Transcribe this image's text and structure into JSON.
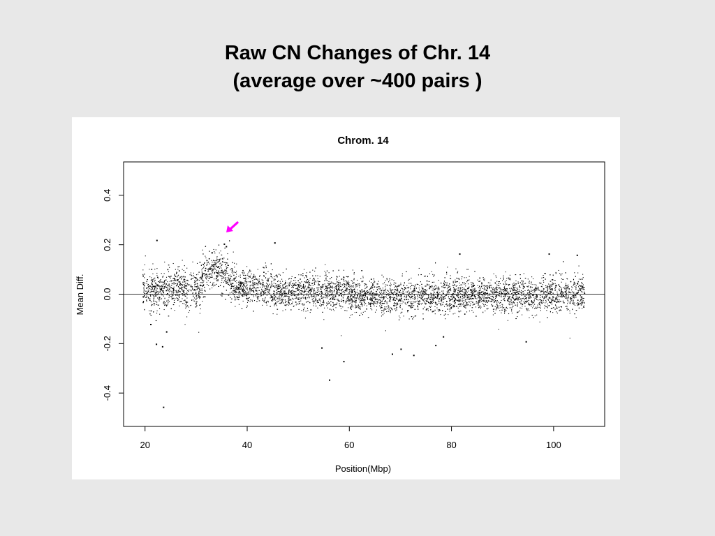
{
  "slide": {
    "title_line1": "Raw CN Changes of Chr. 14",
    "title_line2": "(average over ~400 pairs )"
  },
  "colors": {
    "background": "#e8e8e8",
    "plot_background": "#ffffff",
    "points": "#000000",
    "arrow": "#ff00ff"
  },
  "chart_data": {
    "type": "scatter",
    "title": "Chrom. 14",
    "xlabel": "Position(Mbp)",
    "ylabel": "Mean Diff.",
    "xlim": [
      15.8,
      110
    ],
    "ylim": [
      -0.535,
      0.535
    ],
    "xticks": [
      20,
      40,
      60,
      80,
      100
    ],
    "yticks": [
      -0.4,
      -0.2,
      0.0,
      0.2,
      0.4
    ],
    "xtick_labels": [
      "20",
      "40",
      "60",
      "80",
      "100"
    ],
    "ytick_labels": [
      "-0.4",
      "-0.2",
      "0.0",
      "0.2",
      "0.4"
    ],
    "x_range_of_points": [
      19.5,
      106
    ],
    "reference_line_y": 0.0,
    "grid": false,
    "legend": "none",
    "annotation": {
      "type": "arrow",
      "color": "#ff00ff",
      "points_to": [
        35.9,
        0.25
      ],
      "meaning": "elevated region near 33-37 Mbp"
    },
    "density_profile": [
      {
        "x_start": 19.5,
        "x_end": 26,
        "mean": 0.02,
        "sd": 0.04
      },
      {
        "x_start": 26,
        "x_end": 31,
        "mean": 0.03,
        "sd": 0.04
      },
      {
        "x_start": 31,
        "x_end": 37.5,
        "mean": 0.09,
        "sd": 0.04
      },
      {
        "x_start": 37.5,
        "x_end": 45,
        "mean": 0.03,
        "sd": 0.035
      },
      {
        "x_start": 45,
        "x_end": 60,
        "mean": 0.01,
        "sd": 0.035
      },
      {
        "x_start": 60,
        "x_end": 80,
        "mean": -0.005,
        "sd": 0.035
      },
      {
        "x_start": 80,
        "x_end": 106,
        "mean": 0.0,
        "sd": 0.035
      }
    ],
    "outliers": [
      {
        "x": 22.2,
        "y": 0.22
      },
      {
        "x": 23.5,
        "y": -0.455
      },
      {
        "x": 22.1,
        "y": -0.2
      },
      {
        "x": 23.3,
        "y": -0.21
      },
      {
        "x": 45.3,
        "y": 0.21
      },
      {
        "x": 54.5,
        "y": -0.215
      },
      {
        "x": 56.0,
        "y": -0.345
      },
      {
        "x": 58.8,
        "y": -0.27
      },
      {
        "x": 68.3,
        "y": -0.24
      },
      {
        "x": 70.0,
        "y": -0.22
      },
      {
        "x": 72.5,
        "y": -0.245
      },
      {
        "x": 76.8,
        "y": -0.205
      },
      {
        "x": 78.3,
        "y": -0.17
      },
      {
        "x": 81.5,
        "y": 0.165
      },
      {
        "x": 94.5,
        "y": -0.19
      },
      {
        "x": 99.0,
        "y": 0.165
      },
      {
        "x": 104.5,
        "y": 0.16
      },
      {
        "x": 35.4,
        "y": 0.205
      },
      {
        "x": 35.8,
        "y": 0.195
      },
      {
        "x": 33.0,
        "y": 0.17
      },
      {
        "x": 21.0,
        "y": -0.12
      },
      {
        "x": 24.1,
        "y": -0.15
      }
    ]
  }
}
